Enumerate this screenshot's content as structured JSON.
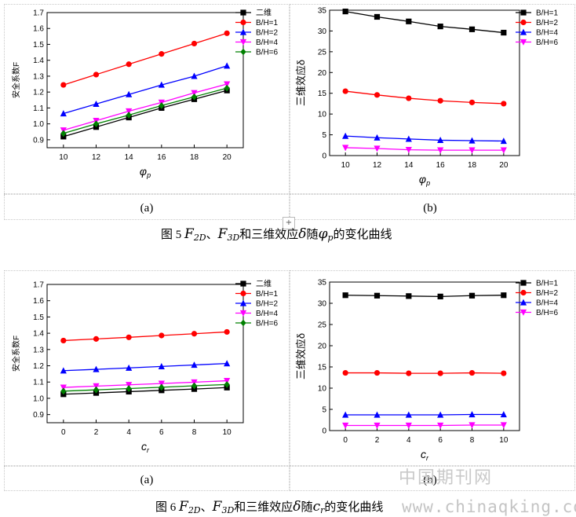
{
  "figures": [
    {
      "caption_prefix": "图 5",
      "caption_mid": "、",
      "caption_text1": "和三维效应",
      "caption_text2": "随",
      "caption_text3": "的变化曲线",
      "var_symbol": "φ",
      "var_sub": "p",
      "left_label": "(a)",
      "right_label": "(b)"
    },
    {
      "caption_prefix": "图 6",
      "caption_mid": "、",
      "caption_text1": "和三维效应",
      "caption_text2": "随",
      "caption_text3": "的变化曲线",
      "var_symbol": "c",
      "var_sub": "r",
      "left_label": "(a)",
      "right_label": "(b)"
    }
  ],
  "caption_symbols": {
    "F": "F",
    "sub2d": "2D",
    "sub3d": "3D",
    "delta": "δ"
  },
  "watermark": {
    "cn": "中国期刊网",
    "url": "www.chinaqking.com"
  },
  "chart_data": [
    {
      "id": "fig5a",
      "type": "line",
      "xlabel": "φp",
      "ylabel": "安全系数F",
      "x": [
        10,
        12,
        14,
        16,
        18,
        20
      ],
      "xlim": [
        9,
        21
      ],
      "ylim": [
        0.85,
        1.7
      ],
      "xticks": [
        10,
        12,
        14,
        16,
        18,
        20
      ],
      "yticks": [
        0.9,
        1.0,
        1.1,
        1.2,
        1.3,
        1.4,
        1.5,
        1.6,
        1.7
      ],
      "series": [
        {
          "name": "二维",
          "color": "#000000",
          "marker": "square",
          "values": [
            0.92,
            0.98,
            1.04,
            1.1,
            1.155,
            1.21
          ]
        },
        {
          "name": "B/H=1",
          "color": "#ff0000",
          "marker": "circle",
          "values": [
            1.245,
            1.31,
            1.375,
            1.44,
            1.505,
            1.57
          ]
        },
        {
          "name": "B/H=2",
          "color": "#0000ff",
          "marker": "triangle-up",
          "values": [
            1.065,
            1.125,
            1.185,
            1.245,
            1.3,
            1.365
          ]
        },
        {
          "name": "B/H=4",
          "color": "#ff00ff",
          "marker": "triangle-down",
          "values": [
            0.96,
            1.02,
            1.08,
            1.135,
            1.195,
            1.25
          ]
        },
        {
          "name": "B/H=6",
          "color": "#008000",
          "marker": "diamond",
          "values": [
            0.94,
            1.0,
            1.055,
            1.115,
            1.17,
            1.225
          ]
        }
      ]
    },
    {
      "id": "fig5b",
      "type": "line",
      "xlabel": "φp",
      "ylabel": "三维效应δ",
      "x": [
        10,
        12,
        14,
        16,
        18,
        20
      ],
      "xlim": [
        9,
        21
      ],
      "ylim": [
        0,
        35
      ],
      "xticks": [
        10,
        12,
        14,
        16,
        18,
        20
      ],
      "yticks": [
        0,
        5,
        10,
        15,
        20,
        25,
        30,
        35
      ],
      "series": [
        {
          "name": "B/H=1",
          "color": "#000000",
          "marker": "square",
          "values": [
            34.7,
            33.4,
            32.3,
            31.1,
            30.4,
            29.6
          ]
        },
        {
          "name": "B/H=2",
          "color": "#ff0000",
          "marker": "circle",
          "values": [
            15.5,
            14.6,
            13.8,
            13.2,
            12.8,
            12.5
          ]
        },
        {
          "name": "B/H=4",
          "color": "#0000ff",
          "marker": "triangle-up",
          "values": [
            4.7,
            4.3,
            4.0,
            3.7,
            3.6,
            3.5
          ]
        },
        {
          "name": "B/H=6",
          "color": "#ff00ff",
          "marker": "triangle-down",
          "values": [
            1.9,
            1.7,
            1.4,
            1.3,
            1.3,
            1.3
          ]
        }
      ]
    },
    {
      "id": "fig6a",
      "type": "line",
      "xlabel": "cr",
      "ylabel": "安全系数F",
      "x": [
        0,
        2,
        4,
        6,
        8,
        10
      ],
      "xlim": [
        -1,
        11
      ],
      "ylim": [
        0.85,
        1.7
      ],
      "xticks": [
        0,
        2,
        4,
        6,
        8,
        10
      ],
      "yticks": [
        0.9,
        1.0,
        1.1,
        1.2,
        1.3,
        1.4,
        1.5,
        1.6,
        1.7
      ],
      "series": [
        {
          "name": "二维",
          "color": "#000000",
          "marker": "square",
          "values": [
            1.025,
            1.033,
            1.041,
            1.049,
            1.057,
            1.066
          ]
        },
        {
          "name": "B/H=1",
          "color": "#ff0000",
          "marker": "circle",
          "values": [
            1.355,
            1.365,
            1.375,
            1.386,
            1.397,
            1.408
          ]
        },
        {
          "name": "B/H=2",
          "color": "#0000ff",
          "marker": "triangle-up",
          "values": [
            1.17,
            1.178,
            1.187,
            1.196,
            1.205,
            1.214
          ]
        },
        {
          "name": "B/H=4",
          "color": "#ff00ff",
          "marker": "triangle-down",
          "values": [
            1.067,
            1.075,
            1.083,
            1.091,
            1.099,
            1.108
          ]
        },
        {
          "name": "B/H=6",
          "color": "#008000",
          "marker": "diamond",
          "values": [
            1.044,
            1.052,
            1.06,
            1.068,
            1.077,
            1.085
          ]
        }
      ]
    },
    {
      "id": "fig6b",
      "type": "line",
      "xlabel": "cr",
      "ylabel": "三维效应δ",
      "x": [
        0,
        2,
        4,
        6,
        8,
        10
      ],
      "xlim": [
        -1,
        11
      ],
      "ylim": [
        0,
        35
      ],
      "xticks": [
        0,
        2,
        4,
        6,
        8,
        10
      ],
      "yticks": [
        0,
        5,
        10,
        15,
        20,
        25,
        30,
        35
      ],
      "series": [
        {
          "name": "B/H=1",
          "color": "#000000",
          "marker": "square",
          "values": [
            31.9,
            31.8,
            31.7,
            31.6,
            31.8,
            31.9
          ]
        },
        {
          "name": "B/H=2",
          "color": "#ff0000",
          "marker": "circle",
          "values": [
            13.6,
            13.6,
            13.5,
            13.5,
            13.6,
            13.5
          ]
        },
        {
          "name": "B/H=4",
          "color": "#0000ff",
          "marker": "triangle-up",
          "values": [
            3.7,
            3.7,
            3.7,
            3.7,
            3.8,
            3.8
          ]
        },
        {
          "name": "B/H=6",
          "color": "#ff00ff",
          "marker": "triangle-down",
          "values": [
            1.2,
            1.2,
            1.2,
            1.2,
            1.3,
            1.3
          ]
        }
      ]
    }
  ]
}
